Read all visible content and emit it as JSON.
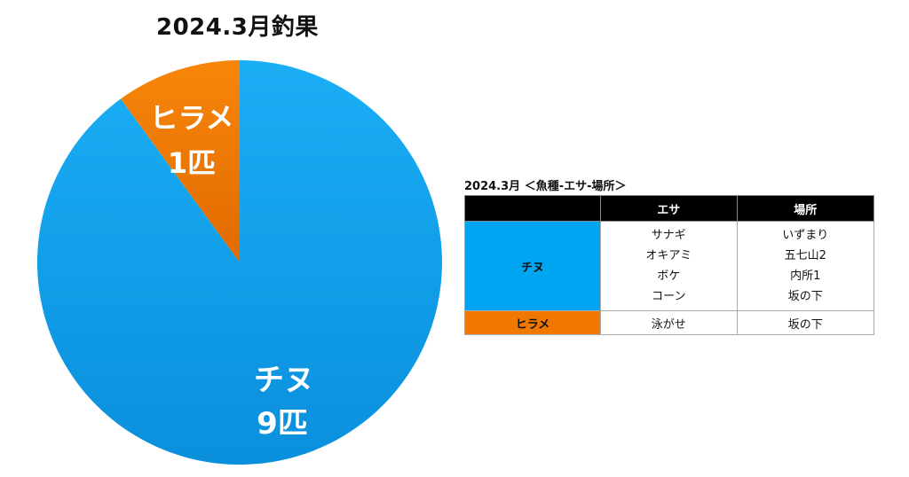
{
  "colors": {
    "chinu": "#00a5f2",
    "hirame": "#f07800",
    "header_bg": "#000000"
  },
  "chart_data": {
    "type": "pie",
    "title": "2024.3月釣果",
    "slices": [
      {
        "label": "チヌ",
        "value_label": "9匹",
        "value": 9,
        "color": "#00a5f2"
      },
      {
        "label": "ヒラメ",
        "value_label": "1匹",
        "value": 1,
        "color": "#f07800"
      }
    ]
  },
  "table": {
    "caption": "2024.3月 ＜魚種-エサ-場所＞",
    "headers": [
      "",
      "エサ",
      "場所"
    ],
    "rows": [
      {
        "fish": "チヌ",
        "color": "#00a5f2",
        "bait": [
          "サナギ",
          "オキアミ",
          "ボケ",
          "コーン"
        ],
        "place": [
          "いずまり",
          "五七山2",
          "内所1",
          "坂の下"
        ]
      },
      {
        "fish": "ヒラメ",
        "color": "#f07800",
        "bait": [
          "泳がせ"
        ],
        "place": [
          "坂の下"
        ]
      }
    ]
  }
}
